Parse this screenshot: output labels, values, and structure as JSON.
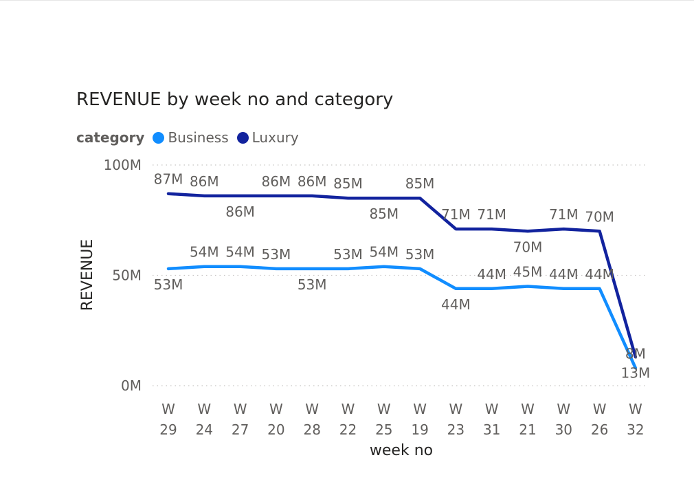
{
  "chart_data": {
    "type": "line",
    "title": "REVENUE by week no and category",
    "xlabel": "week no",
    "ylabel": "REVENUE",
    "ylim": [
      0,
      100
    ],
    "yticks": [
      {
        "value": 0,
        "label": "0M"
      },
      {
        "value": 50,
        "label": "50M"
      },
      {
        "value": 100,
        "label": "100M"
      }
    ],
    "grid": true,
    "legend": {
      "title": "category",
      "position": "top-left"
    },
    "categories": [
      {
        "prefix": "W",
        "num": "29"
      },
      {
        "prefix": "W",
        "num": "24"
      },
      {
        "prefix": "W",
        "num": "27"
      },
      {
        "prefix": "W",
        "num": "20"
      },
      {
        "prefix": "W",
        "num": "28"
      },
      {
        "prefix": "W",
        "num": "22"
      },
      {
        "prefix": "W",
        "num": "25"
      },
      {
        "prefix": "W",
        "num": "19"
      },
      {
        "prefix": "W",
        "num": "23"
      },
      {
        "prefix": "W",
        "num": "31"
      },
      {
        "prefix": "W",
        "num": "21"
      },
      {
        "prefix": "W",
        "num": "30"
      },
      {
        "prefix": "W",
        "num": "26"
      },
      {
        "prefix": "W",
        "num": "32"
      }
    ],
    "series": [
      {
        "name": "Business",
        "color": "#118DFF",
        "values": [
          53,
          54,
          54,
          53,
          53,
          53,
          54,
          53,
          44,
          44,
          45,
          44,
          44,
          8
        ],
        "labels": [
          "53M",
          "54M",
          "54M",
          "53M",
          "53M",
          "53M",
          "54M",
          "53M",
          "44M",
          "44M",
          "45M",
          "44M",
          "44M",
          "8M"
        ],
        "label_pos": [
          "below",
          "above",
          "above",
          "above",
          "below",
          "above",
          "above",
          "above",
          "below",
          "above",
          "above",
          "above",
          "above",
          "above"
        ]
      },
      {
        "name": "Luxury",
        "color": "#12239E",
        "values": [
          87,
          86,
          86,
          86,
          86,
          85,
          85,
          85,
          71,
          71,
          70,
          71,
          70,
          13
        ],
        "labels": [
          "87M",
          "86M",
          "86M",
          "86M",
          "86M",
          "85M",
          "85M",
          "85M",
          "71M",
          "71M",
          "70M",
          "71M",
          "70M",
          "13M"
        ],
        "label_pos": [
          "above",
          "above",
          "below",
          "above",
          "above",
          "above",
          "below",
          "above",
          "above",
          "above",
          "below",
          "above",
          "above",
          "below"
        ]
      }
    ]
  }
}
